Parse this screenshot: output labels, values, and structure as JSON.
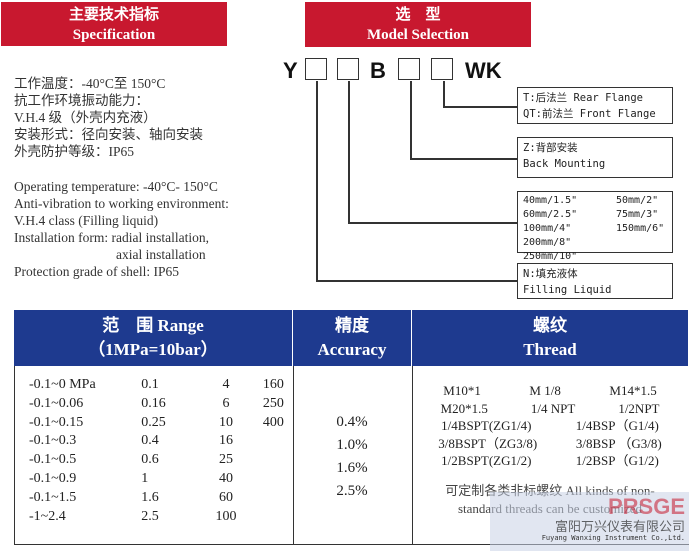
{
  "spec": {
    "title_cn": "主要技术指标",
    "title_en": "Specification",
    "lines_cn": [
      "工作温度：-40°C至 150°C",
      "抗工作环境振动能力：",
      "V.H.4 级（外壳内充液）",
      "安装形式：径向安装、轴向安装",
      "外壳防护等级：IP65"
    ],
    "lines_en": [
      "Operating temperature: -40°C- 150°C",
      "Anti-vibration to working environment:",
      "V.H.4 class (Filling liquid)",
      "Installation form: radial installation,",
      "axial installation",
      "Protection grade of shell: IP65"
    ]
  },
  "model": {
    "title_cn": "选　型",
    "title_en": "Model Selection",
    "code": [
      "Y",
      "B",
      "WK"
    ],
    "options": {
      "flange": [
        "T:后法兰  Rear Flange",
        "QT:前法兰 Front Flange"
      ],
      "mount": [
        "Z:背部安装",
        "Back Mounting"
      ],
      "sizes": [
        [
          "40mm/1.5\"",
          "50mm/2\""
        ],
        [
          "60mm/2.5\"",
          "75mm/3\""
        ],
        [
          "100mm/4\"",
          "150mm/6\""
        ],
        [
          "200mm/8\"",
          "250mm/10\""
        ]
      ],
      "fill": [
        "N:填充液体",
        "Filling Liquid"
      ]
    }
  },
  "table": {
    "range_h1": "范　围 Range",
    "range_h2": "（1MPa=10bar）",
    "acc_h1": "精度",
    "acc_h2": "Accuracy",
    "thr_h1": "螺纹",
    "thr_h2": "Thread",
    "ranges": [
      [
        "-0.1~0 MPa",
        "0.1",
        "4",
        "160"
      ],
      [
        "-0.1~0.06",
        "0.16",
        "6",
        "250"
      ],
      [
        "-0.1~0.15",
        "0.25",
        "10",
        "400"
      ],
      [
        "-0.1~0.3",
        "0.4",
        "16",
        ""
      ],
      [
        "-0.1~0.5",
        "0.6",
        "25",
        ""
      ],
      [
        "-0.1~0.9",
        "1",
        "40",
        ""
      ],
      [
        "-0.1~1.5",
        "1.6",
        "60",
        ""
      ],
      [
        "-1~2.4",
        "2.5",
        "100",
        ""
      ]
    ],
    "accuracy": [
      "0.4%",
      "1.0%",
      "1.6%",
      "2.5%"
    ],
    "threads": [
      [
        "M10*1",
        "M 1/8",
        "M14*1.5"
      ],
      [
        "M20*1.5",
        "1/4 NPT",
        "1/2NPT"
      ],
      [
        "1/4BSPT(ZG1/4)",
        "1/4BSP（G1/4)"
      ],
      [
        "3/8BSPT（ZG3/8)",
        "3/8BSP （G3/8)"
      ],
      [
        "1/2BSPT(ZG1/2)",
        "1/2BSP（G1/2)"
      ]
    ],
    "custom": [
      "可定制各类非标螺纹 All kinds of non-",
      "standard threads can be customized"
    ]
  },
  "watermark": {
    "logo": "PRSGE",
    "company_cn": "富阳万兴仪表有限公司",
    "company_en": "Fuyang Wanxing Instrument Co.,Ltd."
  },
  "colors": {
    "red": "#c8182f",
    "blue": "#1e3a8f"
  }
}
